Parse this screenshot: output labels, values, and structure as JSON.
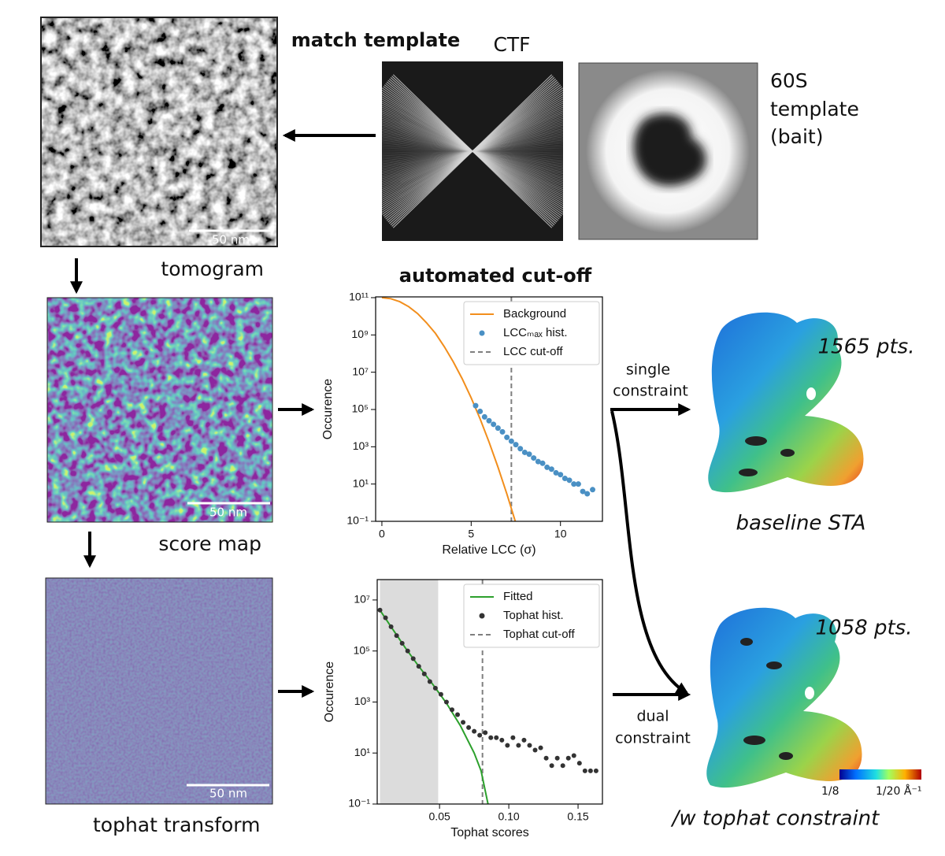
{
  "panels": {
    "match_template": "match template",
    "ctf": "CTF",
    "template": [
      "60S",
      "template",
      "(bait)"
    ],
    "tomogram": "tomogram",
    "score_map": "score map",
    "tophat_transform": "tophat transform",
    "scale_bars": [
      "50 nm",
      "50 nm",
      "50 nm"
    ]
  },
  "arrows": {
    "single": [
      "single",
      "constraint"
    ],
    "dual": [
      "dual",
      "constraint"
    ]
  },
  "results": {
    "baseline_count": "1565 pts.",
    "baseline_label": "baseline STA",
    "tophat_count": "1058 pts.",
    "tophat_label": "/w tophat constraint",
    "colorbar": [
      "1/8",
      "1/20 Å⁻¹"
    ]
  },
  "chart_data": [
    {
      "type": "line",
      "title": "automated cut-off",
      "x_label": "Relative LCC (σ)",
      "y_label": "Occurence",
      "log_y": true,
      "xlim": [
        -0.35,
        12.35
      ],
      "xticks": [
        0,
        5,
        10
      ],
      "ylim": [
        0.1,
        110000000000
      ],
      "yticks": [
        {
          "value": 0.1,
          "label": "10⁻¹"
        },
        {
          "value": 10,
          "label": "10¹"
        },
        {
          "value": 1000,
          "label": "10³"
        },
        {
          "value": 100000,
          "label": "10⁵"
        },
        {
          "value": 10000000,
          "label": "10⁷"
        },
        {
          "value": 1000000000,
          "label": "10⁹"
        },
        {
          "value": 100000000000,
          "label": "10¹¹"
        }
      ],
      "legend": "upper right",
      "series": [
        {
          "name": "Background",
          "color": "#f28e1c",
          "mark": "line",
          "x": [
            0,
            0.5,
            1,
            1.5,
            2,
            2.5,
            3,
            3.5,
            4,
            4.5,
            5,
            5.5,
            6,
            6.5,
            7,
            7.5
          ],
          "values": [
            100000000000,
            88000000000,
            61000000000,
            33000000000,
            14000000000,
            4500000000,
            1200000000,
            230000000,
            36000000,
            4400000,
            420000,
            31000,
            1800,
            82,
            2.9,
            0.081
          ]
        },
        {
          "name": "LCCₘₐₓ hist.",
          "color": "#4a90c4",
          "mark": "scatter",
          "x": [
            5.25,
            5.5,
            5.75,
            6.0,
            6.25,
            6.5,
            6.75,
            7.0,
            7.25,
            7.5,
            7.75,
            8.0,
            8.25,
            8.5,
            8.75,
            9.0,
            9.25,
            9.5,
            9.75,
            10.0,
            10.25,
            10.5,
            10.75,
            11.0,
            11.25,
            11.5,
            11.8
          ],
          "values": [
            160000,
            79000,
            40000,
            25000,
            16000,
            10000,
            6300,
            3200,
            2000,
            1300,
            790,
            500,
            400,
            250,
            160,
            130,
            79,
            63,
            40,
            32,
            20,
            16,
            10,
            10,
            4,
            3,
            5
          ]
        }
      ],
      "cutoff": {
        "name": "LCC cut-off",
        "x": 7.25,
        "color": "#7f7f7f"
      }
    },
    {
      "type": "line",
      "x_label": "Tophat scores",
      "y_label": "Occurence",
      "log_y": true,
      "xlim": [
        0.005,
        0.1676
      ],
      "xticks": [
        0.05,
        {
          "value": 0.1,
          "label": "0.10"
        },
        0.15
      ],
      "ylim": [
        0.1,
        63000000
      ],
      "yticks": [
        {
          "value": 0.1,
          "label": "10⁻¹"
        },
        {
          "value": 10,
          "label": "10¹"
        },
        {
          "value": 1000,
          "label": "10³"
        },
        {
          "value": 100000,
          "label": "10⁵"
        },
        {
          "value": 10000000,
          "label": "10⁷"
        }
      ],
      "shaded_x": [
        0.007,
        0.049
      ],
      "shaded_color": "#dcdcdc",
      "legend": "upper right",
      "series": [
        {
          "name": "Fitted",
          "color": "#2ca02c",
          "mark": "line",
          "x": [
            0.007,
            0.015,
            0.025,
            0.035,
            0.045,
            0.055,
            0.065,
            0.075,
            0.08,
            0.085
          ],
          "values": [
            4000000,
            890000,
            140000,
            25000,
            5000,
            900,
            120,
            10,
            2,
            0.1
          ]
        },
        {
          "name": "Tophat hist.",
          "color": "#333333",
          "mark": "scatter",
          "x": [
            0.007,
            0.011,
            0.015,
            0.019,
            0.023,
            0.027,
            0.031,
            0.035,
            0.039,
            0.043,
            0.047,
            0.051,
            0.055,
            0.059,
            0.063,
            0.067,
            0.071,
            0.075,
            0.079,
            0.083,
            0.087,
            0.091,
            0.095,
            0.099,
            0.103,
            0.107,
            0.111,
            0.115,
            0.119,
            0.123,
            0.127,
            0.131,
            0.135,
            0.139,
            0.143,
            0.147,
            0.151,
            0.155,
            0.159,
            0.163
          ],
          "values": [
            4000000,
            2000000,
            890000,
            400000,
            200000,
            100000,
            50000,
            25000,
            12600,
            6300,
            3500,
            2000,
            1000,
            500,
            320,
            160,
            100,
            71,
            50,
            63,
            40,
            40,
            32,
            20,
            40,
            20,
            32,
            20,
            13,
            16,
            6.3,
            3.2,
            6.3,
            3.2,
            6.3,
            7.9,
            4,
            2,
            2,
            2
          ]
        }
      ],
      "cutoff": {
        "name": "Tophat cut-off",
        "x": 0.081,
        "color": "#7f7f7f"
      }
    }
  ]
}
